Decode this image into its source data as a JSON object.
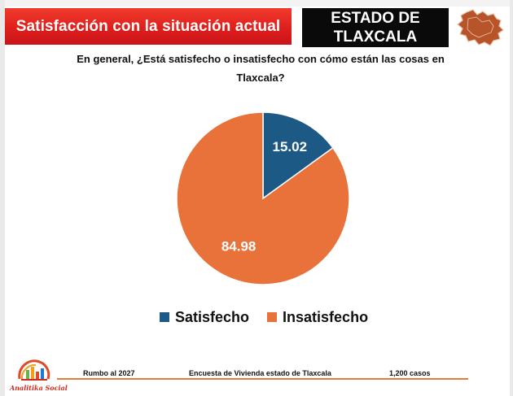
{
  "header": {
    "title": "Satisfacción con la situación actual",
    "state_line1": "ESTADO DE",
    "state_line2": "TLAXCALA",
    "state_map_icon": "tlaxcala-map-icon"
  },
  "question": {
    "line1": "En general, ¿Está satisfecho o insatisfecho con cómo están las cosas en",
    "line2": "Tlaxcala?"
  },
  "chart_data": {
    "type": "pie",
    "title": "",
    "categories": [
      "Satisfecho",
      "Insatisfecho"
    ],
    "values": [
      15.02,
      84.98
    ],
    "value_labels": [
      "15.02",
      "84.98"
    ],
    "colors": [
      "#1c5a85",
      "#e8723a"
    ],
    "legend": "bottom"
  },
  "legend": {
    "items": [
      {
        "label": "Satisfecho",
        "color": "#1c5a85"
      },
      {
        "label": "Insatisfecho",
        "color": "#e8723a"
      }
    ]
  },
  "logo": {
    "text": "Analitika Social",
    "icon": "bar-chart-logo-icon"
  },
  "footer": {
    "left": "Rumbo al 2027",
    "center": "Encuesta de Vivienda estado de Tlaxcala",
    "right": "1,200 casos"
  },
  "colors": {
    "header_red": "#e01f1c",
    "header_black": "#0a0a0a",
    "accent_orange": "#e57a3a"
  }
}
